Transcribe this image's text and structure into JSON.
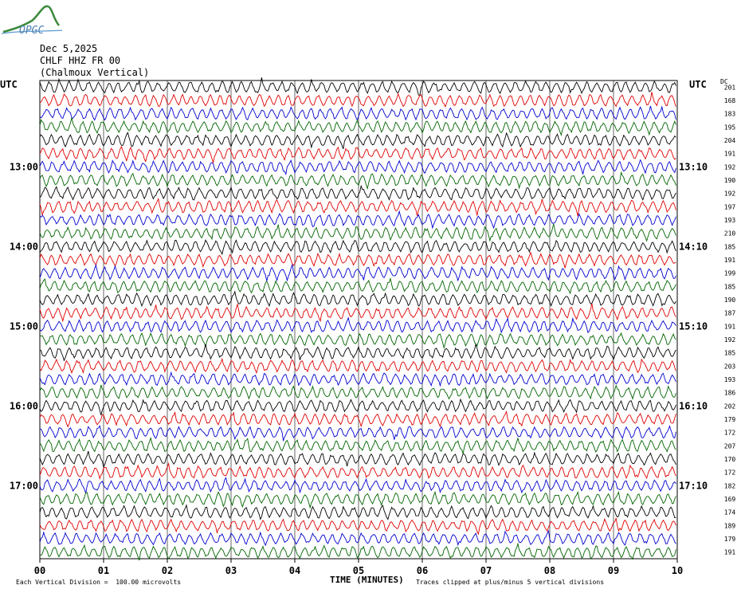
{
  "logo": {
    "text": "OPGC",
    "color": "#3a8a3a"
  },
  "header": {
    "date": "Dec 5,2025",
    "station": "CHLF HHZ FR 00",
    "component": "(Chalmoux Vertical)"
  },
  "axes": {
    "left_unit": "UTC",
    "right_unit": "UTC",
    "dc_label": "DC",
    "xlabel": "TIME (MINUTES)",
    "scale_note": "Each Vertical Division =  100.00 microvolts",
    "clip_note": "Traces clipped at plus/minus 5 vertical divisions"
  },
  "chart_data": {
    "type": "line",
    "title": "",
    "xlabel": "TIME (MINUTES)",
    "x_ticks": [
      "00",
      "01",
      "02",
      "03",
      "04",
      "05",
      "06",
      "07",
      "08",
      "09",
      "10"
    ],
    "xlim": [
      0,
      10
    ],
    "rows": 36,
    "row_colors": [
      "#000000",
      "#e00000",
      "#0000d0",
      "#006400"
    ],
    "left_hour_labels": [
      {
        "row": 6,
        "label": "13:00"
      },
      {
        "row": 12,
        "label": "14:00"
      },
      {
        "row": 18,
        "label": "15:00"
      },
      {
        "row": 24,
        "label": "16:00"
      },
      {
        "row": 30,
        "label": "17:00"
      }
    ],
    "right_hour_labels": [
      {
        "row": 6,
        "label": "13:10"
      },
      {
        "row": 12,
        "label": "14:10"
      },
      {
        "row": 18,
        "label": "15:10"
      },
      {
        "row": 24,
        "label": "16:10"
      },
      {
        "row": 30,
        "label": "17:10"
      }
    ],
    "dc_offsets": [
      "201",
      "168",
      "183",
      "195",
      "204",
      "191",
      "192",
      "190",
      "192",
      "197",
      "193",
      "210",
      "185",
      "191",
      "199",
      "185",
      "190",
      "187",
      "191",
      "192",
      "185",
      "203",
      "193",
      "186",
      "202",
      "179",
      "172",
      "207",
      "170",
      "172",
      "182",
      "169",
      "174",
      "189",
      "179",
      "191"
    ]
  }
}
